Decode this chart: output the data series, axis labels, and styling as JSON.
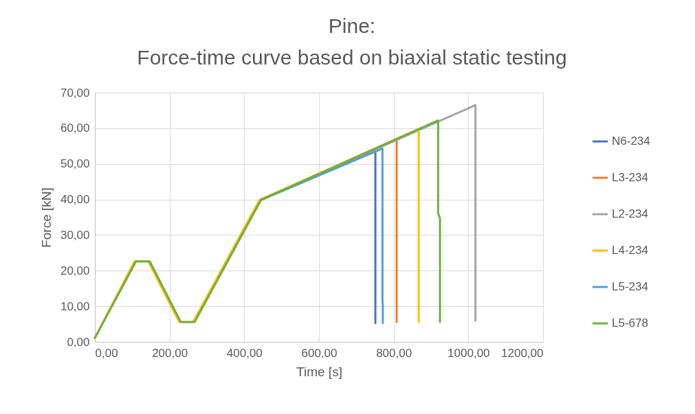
{
  "chart_data": {
    "type": "line",
    "title": "Pine:\nForce-time curve based on biaxial static testing",
    "xlabel": "Time [s]",
    "ylabel": "Force [kN]",
    "series": [
      {
        "name": "N6-234",
        "color": "#4472c4",
        "x": [
          445,
          751,
          751
        ],
        "values": [
          39.9,
          53.6,
          5.3
        ]
      },
      {
        "name": "L3-234",
        "color": "#ed7d31",
        "x": [
          808,
          808
        ],
        "values": [
          56.3,
          5.6
        ]
      },
      {
        "name": "L2-234",
        "color": "#a5a5a5",
        "x": [
          445,
          1019,
          1019
        ],
        "values": [
          39.9,
          66.5,
          6.0
        ]
      },
      {
        "name": "L4-234",
        "color": "#ffc000",
        "x": [
          0,
          106,
          143,
          226,
          263,
          441,
          867,
          867
        ],
        "values": [
          1.1,
          22.6,
          22.6,
          5.6,
          5.6,
          39.9,
          59.8,
          5.6
        ]
      },
      {
        "name": "L5-234",
        "color": "#5b9bd5",
        "x": [
          445,
          770,
          770,
          771,
          771
        ],
        "values": [
          39.9,
          54.3,
          11.1,
          10.5,
          5.3
        ]
      },
      {
        "name": "L5-678",
        "color": "#70ad47",
        "x": [
          0,
          110,
          147,
          230,
          267,
          445,
          919,
          919,
          924,
          924
        ],
        "values": [
          1.1,
          22.6,
          22.6,
          5.6,
          5.6,
          39.9,
          62.2,
          36.2,
          34.6,
          5.6
        ]
      }
    ],
    "xlim": [
      0,
      1200
    ],
    "xticks": [
      {
        "value": 0,
        "label": "0,00"
      },
      {
        "value": 200,
        "label": "200,00"
      },
      {
        "value": 400,
        "label": "400,00"
      },
      {
        "value": 600,
        "label": "600,00"
      },
      {
        "value": 800,
        "label": "800,00"
      },
      {
        "value": 1000,
        "label": "1000,00"
      },
      {
        "value": 1200,
        "label": "1200,00"
      }
    ],
    "ylim": [
      0,
      70
    ],
    "yticks": [
      {
        "value": 0,
        "label": "0,00"
      },
      {
        "value": 10,
        "label": "10,00"
      },
      {
        "value": 20,
        "label": "20,00"
      },
      {
        "value": 30,
        "label": "30,00"
      },
      {
        "value": 40,
        "label": "40,00"
      },
      {
        "value": 50,
        "label": "50,00"
      },
      {
        "value": 60,
        "label": "60,00"
      },
      {
        "value": 70,
        "label": "70,00"
      }
    ],
    "grid": true,
    "legend": "right",
    "line_style": "solid"
  }
}
